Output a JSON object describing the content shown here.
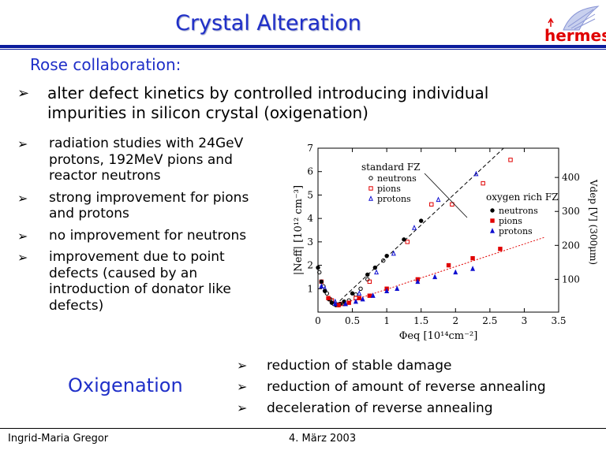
{
  "slide": {
    "title": "Crystal Alteration",
    "logo_text": "hermes",
    "subtitle": "Rose collaboration:",
    "main_bullet": "alter defect kinetics by controlled introducing individual impurities in silicon crystal (oxigenation)",
    "left_bullets": [
      "radiation studies with 24GeV protons, 192MeV pions and reactor neutrons",
      "strong improvement for pions and protons",
      "no improvement for neutrons",
      "improvement due to point defects (caused by an introduction of donator like defects)"
    ],
    "oxygenation_label": "Oxigenation",
    "right_bullets": [
      "reduction of stable damage",
      "reduction of amount of reverse annealing",
      "deceleration of reverse annealing"
    ],
    "footer_author": "Ingrid-Maria Gregor",
    "footer_date": "4. März 2003",
    "bullet_glyph": "➢"
  },
  "colors": {
    "title_blue": "#1f2fc8",
    "rule_blue": "#0b1c9c",
    "red": "#e00000",
    "blue_marker": "#1010d0"
  },
  "chart_data": {
    "type": "scatter",
    "xlabel": "Φeq [10¹⁴cm⁻²]",
    "ylabel": "|Neff| [10¹² cm⁻³]",
    "ylabel_right": "Vdep [V]   (300μm)",
    "xlim": [
      0,
      3.5
    ],
    "ylim": [
      0,
      7
    ],
    "x_ticks": [
      "0",
      "0.5",
      "1",
      "1.5",
      "2",
      "2.5",
      "3",
      "3.5"
    ],
    "y_ticks": [
      "1",
      "2",
      "3",
      "4",
      "5",
      "6",
      "7"
    ],
    "right_ticks": [
      {
        "label": "100",
        "y": 1.4
      },
      {
        "label": "200",
        "y": 2.85
      },
      {
        "label": "300",
        "y": 4.3
      },
      {
        "label": "400",
        "y": 5.75
      }
    ],
    "legend_standard_title": "standard FZ",
    "legend_oxygen_title": "oxygen rich FZ",
    "series": [
      {
        "name": "neutrons",
        "group": "standard FZ",
        "marker": "open-circle",
        "color": "#000000",
        "points": [
          [
            0.02,
            1.7
          ],
          [
            0.08,
            1.1
          ],
          [
            0.13,
            0.8
          ],
          [
            0.18,
            0.55
          ],
          [
            0.23,
            0.35
          ],
          [
            0.3,
            0.3
          ],
          [
            0.38,
            0.35
          ],
          [
            0.45,
            0.5
          ],
          [
            0.55,
            0.75
          ],
          [
            0.62,
            1.0
          ],
          [
            0.72,
            1.4
          ],
          [
            0.95,
            2.2
          ]
        ]
      },
      {
        "name": "pions",
        "group": "standard FZ",
        "marker": "open-square",
        "color": "#e00000",
        "points": [
          [
            0.05,
            1.3
          ],
          [
            0.2,
            0.5
          ],
          [
            0.35,
            0.35
          ],
          [
            0.55,
            0.6
          ],
          [
            0.75,
            1.3
          ],
          [
            1.3,
            3.0
          ],
          [
            1.65,
            4.6
          ],
          [
            1.95,
            4.6
          ],
          [
            2.4,
            5.5
          ],
          [
            2.8,
            6.5
          ]
        ]
      },
      {
        "name": "protons",
        "group": "standard FZ",
        "marker": "open-triangle",
        "color": "#1010d0",
        "points": [
          [
            0.1,
            1.0
          ],
          [
            0.25,
            0.45
          ],
          [
            0.4,
            0.35
          ],
          [
            0.6,
            0.8
          ],
          [
            0.85,
            1.7
          ],
          [
            1.1,
            2.5
          ],
          [
            1.4,
            3.6
          ],
          [
            1.75,
            4.8
          ],
          [
            2.3,
            5.9
          ]
        ]
      },
      {
        "name": "neutrons",
        "group": "oxygen rich FZ",
        "marker": "filled-circle",
        "color": "#000000",
        "points": [
          [
            0.0,
            1.9
          ],
          [
            0.05,
            1.3
          ],
          [
            0.1,
            0.9
          ],
          [
            0.16,
            0.55
          ],
          [
            0.2,
            0.4
          ],
          [
            0.26,
            0.3
          ],
          [
            0.32,
            0.35
          ],
          [
            0.38,
            0.45
          ],
          [
            0.5,
            0.8
          ],
          [
            0.72,
            1.6
          ],
          [
            0.83,
            1.9
          ],
          [
            1.0,
            2.4
          ],
          [
            1.25,
            3.1
          ],
          [
            1.5,
            3.9
          ]
        ]
      },
      {
        "name": "pions",
        "group": "oxygen rich FZ",
        "marker": "filled-square",
        "color": "#e00000",
        "points": [
          [
            0.15,
            0.6
          ],
          [
            0.3,
            0.3
          ],
          [
            0.45,
            0.4
          ],
          [
            0.6,
            0.6
          ],
          [
            0.75,
            0.7
          ],
          [
            1.0,
            1.0
          ],
          [
            1.45,
            1.4
          ],
          [
            1.9,
            2.0
          ],
          [
            2.25,
            2.3
          ],
          [
            2.65,
            2.7
          ]
        ]
      },
      {
        "name": "protons",
        "group": "oxygen rich FZ",
        "marker": "filled-triangle",
        "color": "#1010d0",
        "points": [
          [
            0.05,
            1.1
          ],
          [
            0.25,
            0.35
          ],
          [
            0.4,
            0.35
          ],
          [
            0.55,
            0.45
          ],
          [
            0.65,
            0.55
          ],
          [
            0.8,
            0.7
          ],
          [
            1.0,
            0.9
          ],
          [
            1.15,
            1.0
          ],
          [
            1.45,
            1.3
          ],
          [
            1.7,
            1.5
          ],
          [
            2.0,
            1.7
          ],
          [
            2.25,
            1.85
          ]
        ]
      }
    ],
    "fit_lines": [
      {
        "name": "standard FZ fit",
        "color": "#000000",
        "from": [
          0.25,
          0.3
        ],
        "to": [
          2.7,
          7.0
        ]
      },
      {
        "name": "oxygen rich FZ fit",
        "color": "#e00000",
        "from": [
          0.3,
          0.3
        ],
        "to": [
          3.3,
          3.2
        ]
      }
    ]
  }
}
